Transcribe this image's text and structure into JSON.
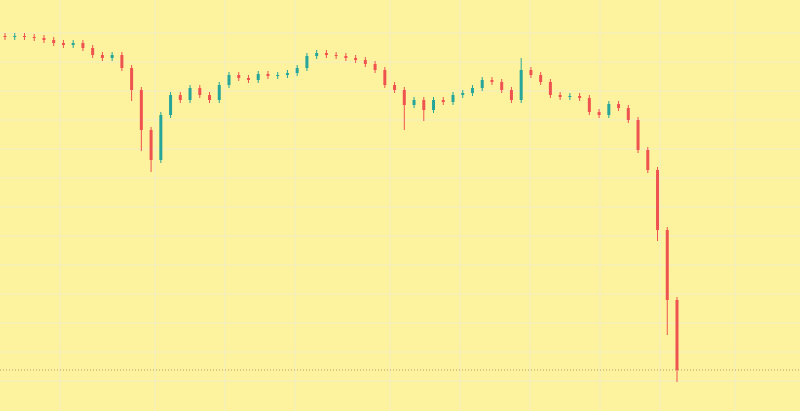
{
  "chart_data": {
    "type": "candlestick",
    "up_color": "#26a69a",
    "down_color": "#ef5350",
    "ylim": [
      0,
      411
    ],
    "open": [
      375,
      374,
      375,
      374,
      373,
      371,
      368,
      366,
      368,
      363,
      356,
      353,
      356,
      343,
      321,
      281,
      251,
      296,
      316,
      311,
      323,
      316,
      311,
      326,
      336,
      333,
      331,
      337,
      335,
      336,
      338,
      343,
      355,
      358,
      356,
      355,
      353,
      351,
      347,
      341,
      326,
      321,
      306,
      311,
      301,
      311,
      309,
      316,
      318,
      323,
      331,
      329,
      321,
      311,
      341,
      336,
      329,
      316,
      314,
      315,
      313,
      299,
      296,
      307,
      303,
      291,
      261,
      241,
      181,
      111
    ],
    "high": [
      378,
      378,
      378,
      377,
      376,
      374,
      371,
      371,
      371,
      366,
      359,
      359,
      359,
      346,
      324,
      284,
      299,
      319,
      319,
      326,
      326,
      319,
      329,
      339,
      339,
      336,
      340,
      340,
      339,
      341,
      346,
      358,
      361,
      361,
      359,
      358,
      356,
      354,
      350,
      344,
      329,
      324,
      314,
      314,
      314,
      314,
      319,
      321,
      326,
      334,
      334,
      332,
      324,
      353,
      344,
      339,
      332,
      319,
      318,
      318,
      316,
      302,
      310,
      310,
      306,
      294,
      264,
      244,
      184,
      114
    ],
    "low": [
      371,
      371,
      371,
      370,
      368,
      365,
      363,
      363,
      360,
      353,
      350,
      350,
      340,
      310,
      260,
      239,
      248,
      293,
      308,
      308,
      313,
      308,
      308,
      323,
      330,
      328,
      328,
      332,
      332,
      333,
      335,
      340,
      352,
      353,
      352,
      350,
      348,
      344,
      338,
      323,
      318,
      281,
      303,
      290,
      298,
      306,
      306,
      313,
      315,
      320,
      326,
      318,
      308,
      308,
      333,
      326,
      313,
      311,
      311,
      310,
      296,
      293,
      293,
      300,
      288,
      258,
      238,
      170,
      76,
      29
    ],
    "close": [
      374,
      375,
      374,
      373,
      371,
      368,
      366,
      368,
      363,
      356,
      353,
      356,
      343,
      321,
      281,
      251,
      296,
      316,
      311,
      323,
      316,
      311,
      326,
      336,
      333,
      331,
      337,
      335,
      336,
      338,
      343,
      355,
      358,
      356,
      355,
      353,
      351,
      347,
      341,
      326,
      321,
      306,
      311,
      301,
      311,
      309,
      316,
      318,
      323,
      331,
      329,
      321,
      311,
      341,
      336,
      329,
      316,
      314,
      315,
      313,
      299,
      296,
      307,
      303,
      291,
      261,
      241,
      181,
      111,
      41
    ]
  }
}
